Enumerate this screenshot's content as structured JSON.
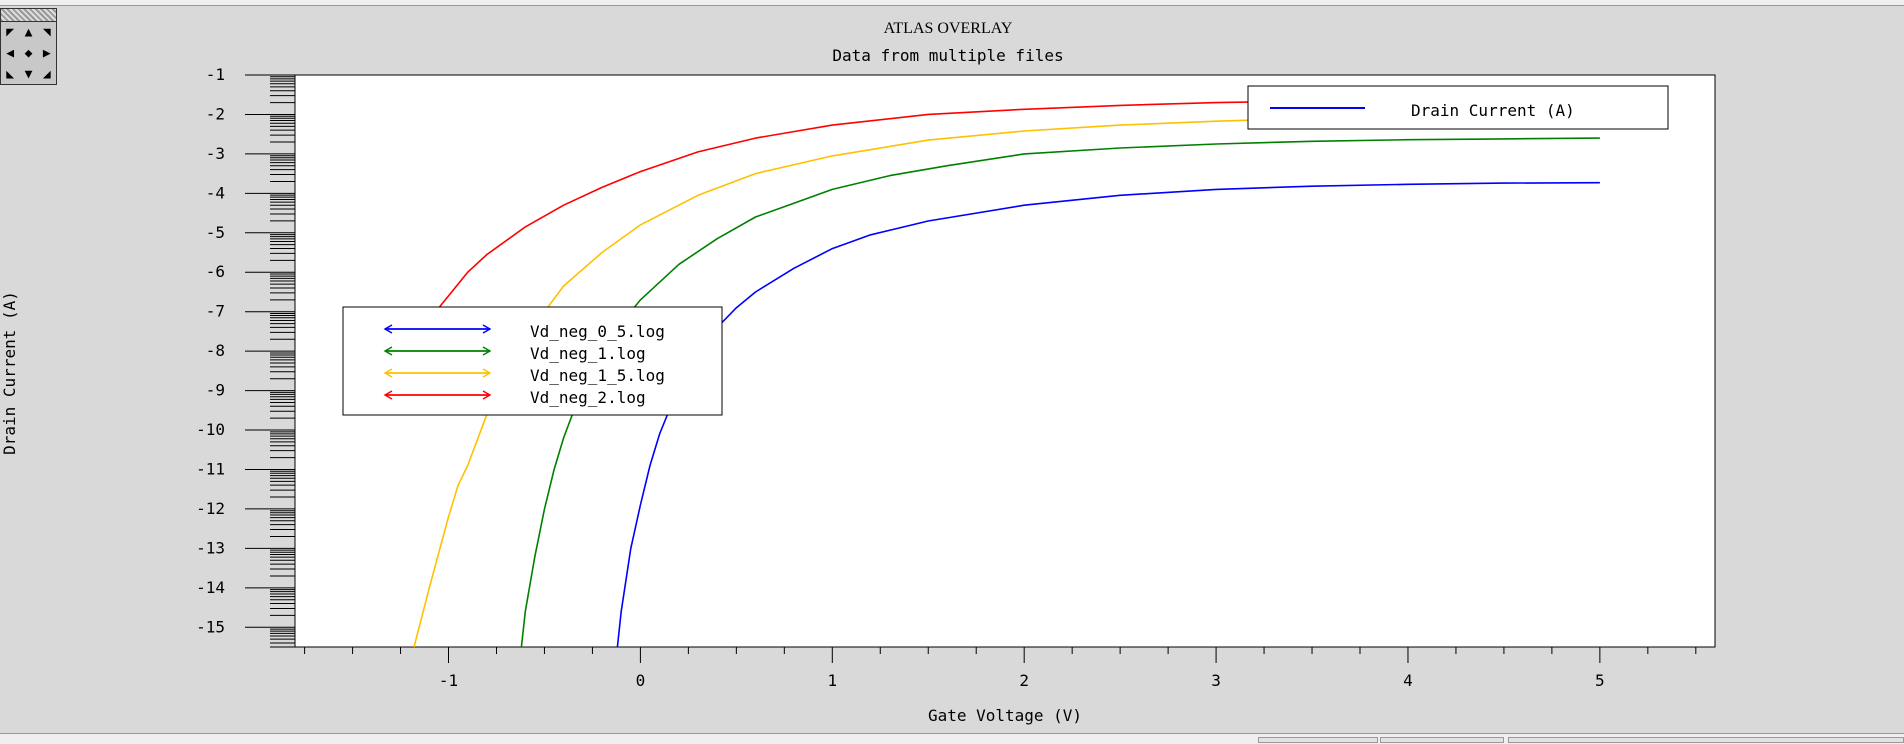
{
  "colors": {
    "blue": "#0000ff",
    "green": "#008000",
    "yellow": "#ffc000",
    "red": "#ff0000",
    "background": "#d9d9d9"
  },
  "pan_control": {
    "icons": [
      "arrow-up-left-icon",
      "arrow-up-icon",
      "arrow-up-right-icon",
      "arrow-left-icon",
      "center-dot-icon",
      "arrow-right-icon",
      "arrow-down-left-icon",
      "arrow-down-icon",
      "arrow-down-right-icon"
    ],
    "glyphs": [
      "◤",
      "▲",
      "◥",
      "◀",
      "◆",
      "▶",
      "◣",
      "▼",
      "◢"
    ]
  },
  "chart_data": {
    "type": "line",
    "title": "ATLAS OVERLAY",
    "subtitle": "Data from multiple files",
    "xlabel": "Gate Voltage (V)",
    "ylabel": "Drain Current (A)",
    "xlim": [
      -1.8,
      5.6
    ],
    "ylim": [
      -15.5,
      -1
    ],
    "y_scale": "log10 (axis shows exponent)",
    "x_ticks": [
      -1,
      0,
      1,
      2,
      3,
      4,
      5
    ],
    "y_ticks": [
      -1,
      -2,
      -3,
      -4,
      -5,
      -6,
      -7,
      -8,
      -9,
      -10,
      -11,
      -12,
      -13,
      -14,
      -15
    ],
    "grid": false,
    "legend": {
      "placement": "left-middle",
      "entries": [
        "Vd_neg_0_5.log",
        "Vd_neg_1.log",
        "Vd_neg_1_5.log",
        "Vd_neg_2.log"
      ]
    },
    "quantity_legend": {
      "placement": "top-right",
      "label": "Drain Current (A)"
    },
    "series": [
      {
        "name": "Vd_neg_0_5.log",
        "color": "#0000ff",
        "points": [
          [
            -0.12,
            -15.5
          ],
          [
            -0.1,
            -14.6
          ],
          [
            -0.05,
            -13.0
          ],
          [
            0,
            -11.9
          ],
          [
            0.05,
            -10.9
          ],
          [
            0.1,
            -10.1
          ],
          [
            0.2,
            -8.9
          ],
          [
            0.3,
            -8.0
          ],
          [
            0.4,
            -7.4
          ],
          [
            0.5,
            -6.9
          ],
          [
            0.6,
            -6.5
          ],
          [
            0.8,
            -5.9
          ],
          [
            1.0,
            -5.4
          ],
          [
            1.2,
            -5.05
          ],
          [
            1.5,
            -4.7
          ],
          [
            2.0,
            -4.3
          ],
          [
            2.5,
            -4.05
          ],
          [
            3.0,
            -3.9
          ],
          [
            3.5,
            -3.82
          ],
          [
            4.0,
            -3.77
          ],
          [
            4.5,
            -3.74
          ],
          [
            5.0,
            -3.73
          ]
        ]
      },
      {
        "name": "Vd_neg_1.log",
        "color": "#008000",
        "points": [
          [
            -0.62,
            -15.5
          ],
          [
            -0.6,
            -14.6
          ],
          [
            -0.55,
            -13.2
          ],
          [
            -0.5,
            -12.0
          ],
          [
            -0.45,
            -11.0
          ],
          [
            -0.4,
            -10.2
          ],
          [
            -0.3,
            -8.9
          ],
          [
            -0.2,
            -8.0
          ],
          [
            -0.1,
            -7.3
          ],
          [
            0,
            -6.7
          ],
          [
            0.2,
            -5.8
          ],
          [
            0.4,
            -5.15
          ],
          [
            0.6,
            -4.6
          ],
          [
            0.8,
            -4.25
          ],
          [
            1.0,
            -3.9
          ],
          [
            1.3,
            -3.55
          ],
          [
            1.6,
            -3.3
          ],
          [
            2.0,
            -3.0
          ],
          [
            2.5,
            -2.85
          ],
          [
            3.0,
            -2.75
          ],
          [
            3.5,
            -2.68
          ],
          [
            4.0,
            -2.64
          ],
          [
            4.5,
            -2.62
          ],
          [
            5.0,
            -2.6
          ]
        ]
      },
      {
        "name": "Vd_neg_1_5.log",
        "color": "#ffc000",
        "points": [
          [
            -1.18,
            -15.5
          ],
          [
            -1.1,
            -14.0
          ],
          [
            -1.0,
            -12.2
          ],
          [
            -0.95,
            -11.4
          ],
          [
            -0.9,
            -10.9
          ],
          [
            -0.8,
            -9.6
          ],
          [
            -0.7,
            -8.6
          ],
          [
            -0.6,
            -7.8
          ],
          [
            -0.5,
            -7.0
          ],
          [
            -0.4,
            -6.35
          ],
          [
            -0.2,
            -5.5
          ],
          [
            0,
            -4.8
          ],
          [
            0.3,
            -4.05
          ],
          [
            0.6,
            -3.5
          ],
          [
            1.0,
            -3.05
          ],
          [
            1.5,
            -2.65
          ],
          [
            2.0,
            -2.42
          ],
          [
            2.5,
            -2.27
          ],
          [
            3.0,
            -2.17
          ],
          [
            3.5,
            -2.1
          ],
          [
            4.0,
            -2.06
          ],
          [
            4.5,
            -2.03
          ],
          [
            5.0,
            -2.0
          ]
        ]
      },
      {
        "name": "Vd_neg_2.log",
        "color": "#ff0000",
        "points": [
          [
            -1.2,
            -8.0
          ],
          [
            -1.15,
            -7.6
          ],
          [
            -1.1,
            -7.2
          ],
          [
            -1.0,
            -6.6
          ],
          [
            -0.9,
            -6.0
          ],
          [
            -0.8,
            -5.55
          ],
          [
            -0.6,
            -4.85
          ],
          [
            -0.4,
            -4.3
          ],
          [
            -0.2,
            -3.85
          ],
          [
            0,
            -3.45
          ],
          [
            0.3,
            -2.95
          ],
          [
            0.6,
            -2.6
          ],
          [
            1.0,
            -2.27
          ],
          [
            1.5,
            -2.0
          ],
          [
            2.0,
            -1.87
          ],
          [
            2.5,
            -1.77
          ],
          [
            3.0,
            -1.7
          ],
          [
            3.5,
            -1.66
          ],
          [
            4.0,
            -1.64
          ],
          [
            4.5,
            -1.62
          ],
          [
            5.0,
            -1.6
          ]
        ]
      }
    ]
  }
}
